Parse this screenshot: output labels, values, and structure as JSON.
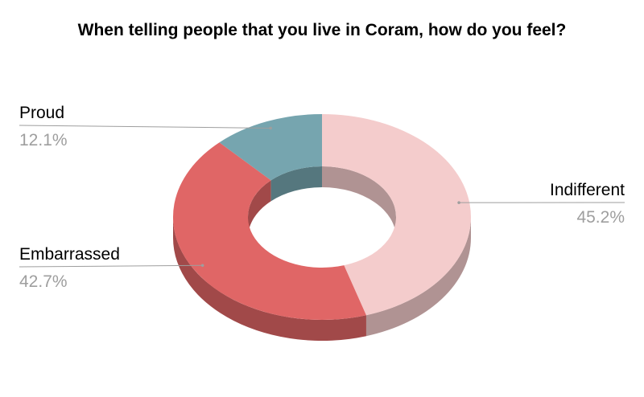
{
  "chart_data": {
    "type": "pie",
    "subtype": "3d-donut",
    "title": "When telling people that you live in Coram, how do you feel?",
    "slices": [
      {
        "label": "Indifferent",
        "value": 45.2,
        "value_label": "45.2%",
        "color": "#f4cccc"
      },
      {
        "label": "Embarrassed",
        "value": 42.7,
        "value_label": "42.7%",
        "color": "#e06666"
      },
      {
        "label": "Proud",
        "value": 12.1,
        "value_label": "12.1%",
        "color": "#76a5af"
      }
    ],
    "legend": "none",
    "label_color": "#000000",
    "value_color": "#9e9e9e"
  }
}
